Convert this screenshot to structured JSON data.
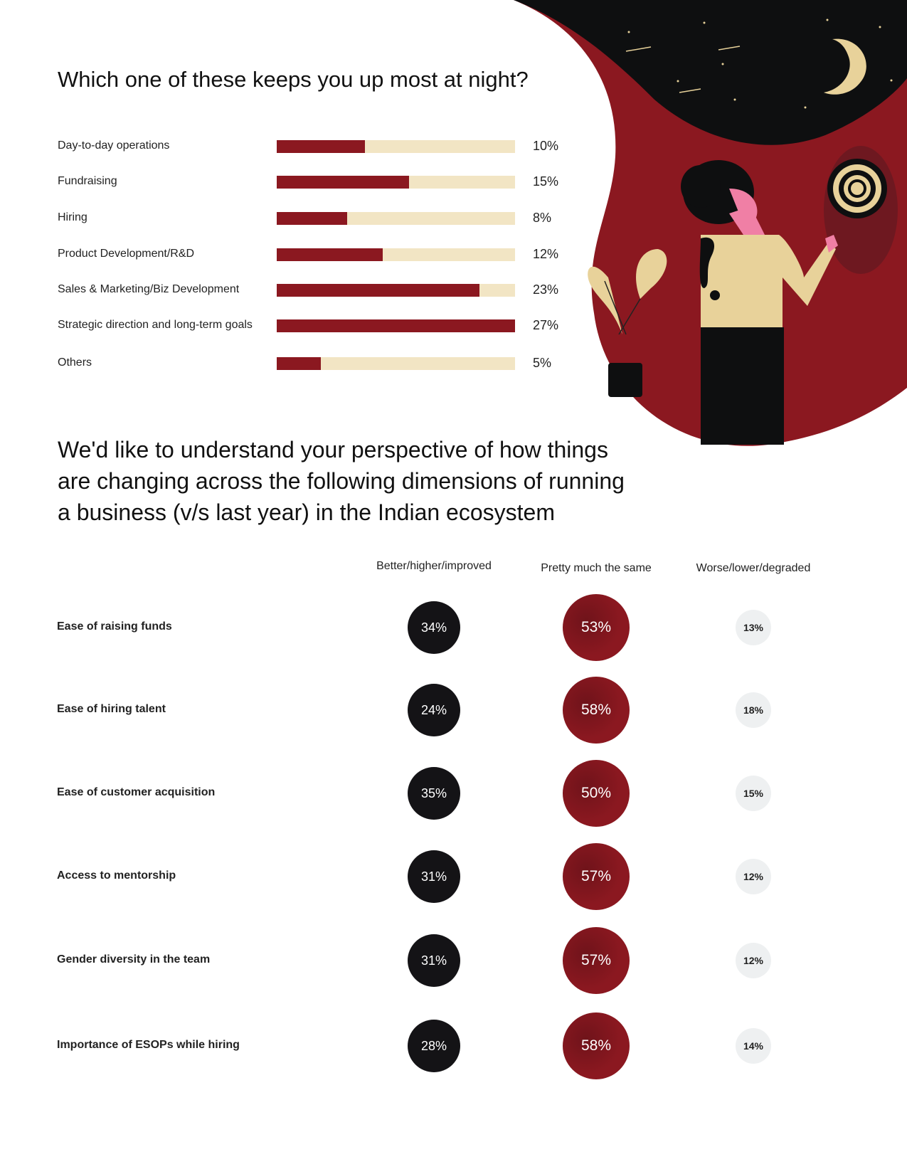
{
  "colors": {
    "bar_fill": "#8b1820",
    "bar_track": "#f2e5c4",
    "better": "#141316",
    "same": "#8b1820",
    "worse": "#eef0f1"
  },
  "chart_data": [
    {
      "type": "bar",
      "orientation": "horizontal",
      "title": "Which one of these keeps you up most at night?",
      "categories": [
        "Day-to-day operations",
        "Fundraising",
        "Hiring",
        "Product Development/R&D",
        "Sales & Marketing/Biz Development",
        "Strategic direction and long-term goals",
        "Others"
      ],
      "values": [
        10,
        15,
        8,
        12,
        23,
        27,
        5
      ],
      "value_labels": [
        "10%",
        "15%",
        "8%",
        "12%",
        "23%",
        "27%",
        "5%"
      ],
      "unit": "%"
    },
    {
      "type": "table",
      "title": "We'd like to understand your perspective of how things are changing across the following dimensions of running a business (v/s last year) in the Indian ecosystem",
      "columns": [
        "Better/higher/improved",
        "Pretty much the same",
        "Worse/lower/degraded"
      ],
      "rows": [
        {
          "label": "Ease of raising funds",
          "values": [
            "34%",
            "53%",
            "13%"
          ]
        },
        {
          "label": "Ease of hiring talent",
          "values": [
            "24%",
            "58%",
            "18%"
          ]
        },
        {
          "label": "Ease of customer acquisition",
          "values": [
            "35%",
            "50%",
            "15%"
          ]
        },
        {
          "label": "Access to mentorship",
          "values": [
            "31%",
            "57%",
            "12%"
          ]
        },
        {
          "label": "Gender diversity in the team",
          "values": [
            "31%",
            "57%",
            "12%"
          ]
        },
        {
          "label": "Importance of ESOPs while hiring",
          "values": [
            "28%",
            "58%",
            "14%"
          ]
        }
      ]
    }
  ],
  "illustration": {
    "icons": [
      "moon-icon",
      "stars-icon",
      "woman-figure",
      "dartboard-icon",
      "plant-icon"
    ]
  }
}
